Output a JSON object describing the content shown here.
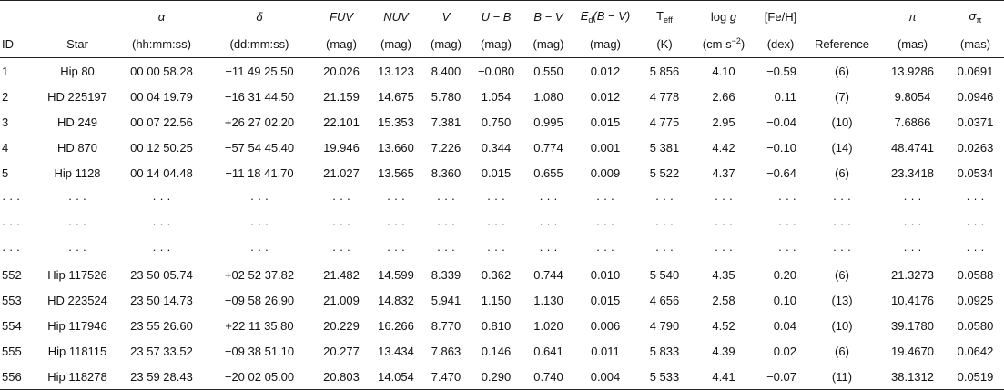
{
  "table": {
    "columns": [
      {
        "bottom": [
          {
            "text": "ID"
          }
        ]
      },
      {
        "bottom": [
          {
            "text": "Star"
          }
        ]
      },
      {
        "top": [
          {
            "text": "α",
            "style": "italic"
          }
        ],
        "bottom": [
          {
            "text": "(hh:mm:ss)"
          }
        ]
      },
      {
        "top": [
          {
            "text": "δ",
            "style": "italic"
          }
        ],
        "bottom": [
          {
            "text": "(dd:mm:ss)"
          }
        ]
      },
      {
        "top": [
          {
            "text": "FUV",
            "style": "italic"
          }
        ],
        "bottom": [
          {
            "text": "(mag)"
          }
        ]
      },
      {
        "top": [
          {
            "text": "NUV",
            "style": "italic"
          }
        ],
        "bottom": [
          {
            "text": "(mag)"
          }
        ]
      },
      {
        "top": [
          {
            "text": "V",
            "style": "italic"
          }
        ],
        "bottom": [
          {
            "text": "(mag)"
          }
        ]
      },
      {
        "top": [
          {
            "text": "U − B",
            "style": "italic"
          }
        ],
        "bottom": [
          {
            "text": "(mag)"
          }
        ]
      },
      {
        "top": [
          {
            "text": "B − V",
            "style": "italic"
          }
        ],
        "bottom": [
          {
            "text": "(mag)"
          }
        ]
      },
      {
        "top": [
          {
            "text": "E",
            "style": "italic"
          },
          {
            "text": "d",
            "style": "sub"
          },
          {
            "text": "(B − V)",
            "style": "italic"
          }
        ],
        "bottom": [
          {
            "text": "(mag)"
          }
        ]
      },
      {
        "top": [
          {
            "text": "T"
          },
          {
            "text": "eff",
            "style": "sub"
          }
        ],
        "bottom": [
          {
            "text": "(K)"
          }
        ]
      },
      {
        "top": [
          {
            "text": "log "
          },
          {
            "text": "g",
            "style": "italic"
          }
        ],
        "bottom": [
          {
            "text": "(cm s"
          },
          {
            "text": "−2",
            "style": "sup"
          },
          {
            "text": ")"
          }
        ]
      },
      {
        "top": [
          {
            "text": "[Fe/H]"
          }
        ],
        "bottom": [
          {
            "text": "(dex)"
          }
        ]
      },
      {
        "bottom": [
          {
            "text": "Reference"
          }
        ]
      },
      {
        "top": [
          {
            "text": "π",
            "style": "italic"
          }
        ],
        "bottom": [
          {
            "text": "(mas)"
          }
        ]
      },
      {
        "top": [
          {
            "text": "σ",
            "style": "italic"
          },
          {
            "text": "π",
            "style": "sub"
          }
        ],
        "bottom": [
          {
            "text": "(mas)"
          }
        ]
      }
    ],
    "rows": [
      [
        "1",
        "Hip 80",
        "00 00 58.28",
        "−11 49 25.50",
        "20.026",
        "13.123",
        "8.400",
        "−0.080",
        "0.550",
        "0.012",
        "5 856",
        "4.10",
        "−0.59",
        "(6)",
        "13.9286",
        "0.0691"
      ],
      [
        "2",
        "HD 225197",
        "00 04 19.79",
        "−16 31 44.50",
        "21.159",
        "14.675",
        "5.780",
        "1.054",
        "1.080",
        "0.012",
        "4 778",
        "2.66",
        "0.11",
        "(7)",
        "9.8054",
        "0.0946"
      ],
      [
        "3",
        "HD 249",
        "00 07 22.56",
        "+26 27 02.20",
        "22.101",
        "15.353",
        "7.381",
        "0.750",
        "0.995",
        "0.015",
        "4 775",
        "2.95",
        "−0.04",
        "(10)",
        "7.6866",
        "0.0371"
      ],
      [
        "4",
        "HD 870",
        "00 12 50.25",
        "−57 54 45.40",
        "19.946",
        "13.660",
        "7.226",
        "0.344",
        "0.774",
        "0.001",
        "5 381",
        "4.42",
        "−0.10",
        "(14)",
        "48.4741",
        "0.0263"
      ],
      [
        "5",
        "Hip 1128",
        "00 14 04.48",
        "−11 18 41.70",
        "21.027",
        "13.565",
        "8.360",
        "0.015",
        "0.655",
        "0.009",
        "5 522",
        "4.37",
        "−0.64",
        "(6)",
        "23.3418",
        "0.0534"
      ],
      [
        "· · ·",
        "· · ·",
        "· · ·",
        "· · ·",
        "· · ·",
        "· · ·",
        "· · ·",
        "· · ·",
        "· · ·",
        "· · ·",
        "· · ·",
        "· · ·",
        "· · ·",
        "· · ·",
        "· · ·",
        "· · ·"
      ],
      [
        "· · ·",
        "· · ·",
        "· · ·",
        "· · ·",
        "· · ·",
        "· · ·",
        "· · ·",
        "· · ·",
        "· · ·",
        "· · ·",
        "· · ·",
        "· · ·",
        "· · ·",
        "· · ·",
        "· · ·",
        "· · ·"
      ],
      [
        "· · ·",
        "· · ·",
        "· · ·",
        "· · ·",
        "· · ·",
        "· · ·",
        "· · ·",
        "· · ·",
        "· · ·",
        "· · ·",
        "· · ·",
        "· · ·",
        "· · ·",
        "· · ·",
        "· · ·",
        "· · ·"
      ],
      [
        "552",
        "Hip 117526",
        "23 50 05.74",
        "+02 52 37.82",
        "21.482",
        "14.599",
        "8.339",
        "0.362",
        "0.744",
        "0.010",
        "5 540",
        "4.35",
        "0.20",
        "(6)",
        "21.3273",
        "0.0588"
      ],
      [
        "553",
        "HD 223524",
        "23 50 14.73",
        "−09 58 26.90",
        "21.009",
        "14.832",
        "5.941",
        "1.150",
        "1.130",
        "0.015",
        "4 656",
        "2.58",
        "0.10",
        "(13)",
        "10.4176",
        "0.0925"
      ],
      [
        "554",
        "Hip 117946",
        "23 55 26.60",
        "+22 11 35.80",
        "20.229",
        "16.266",
        "8.770",
        "0.810",
        "1.020",
        "0.006",
        "4 790",
        "4.52",
        "0.04",
        "(10)",
        "39.1780",
        "0.0580"
      ],
      [
        "555",
        "Hip 118115",
        "23 57 33.52",
        "−09 38 51.10",
        "20.277",
        "13.434",
        "7.863",
        "0.146",
        "0.641",
        "0.011",
        "5 833",
        "4.39",
        "0.02",
        "(6)",
        "19.4670",
        "0.0642"
      ],
      [
        "556",
        "Hip 118278",
        "23 59 28.43",
        "−20 02 05.00",
        "20.803",
        "14.054",
        "7.470",
        "0.290",
        "0.740",
        "0.004",
        "5 533",
        "4.41",
        "−0.07",
        "(11)",
        "38.1312",
        "0.0519"
      ]
    ]
  }
}
